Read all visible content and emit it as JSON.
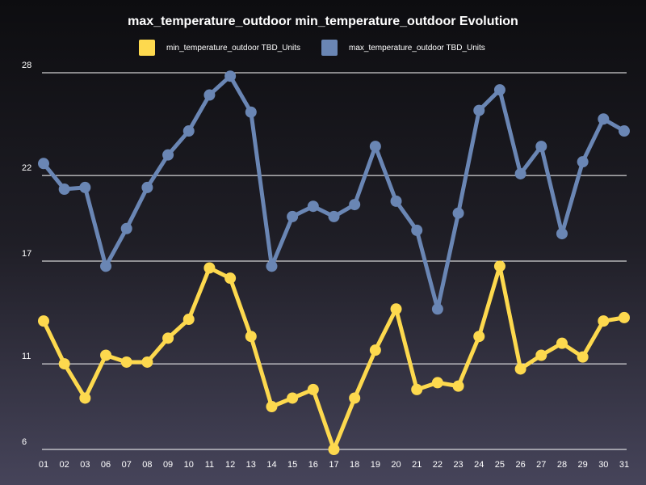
{
  "chart_data": {
    "type": "line",
    "title": "max_temperature_outdoor min_temperature_outdoor  Evolution",
    "xlabel": "",
    "ylabel": "",
    "categories": [
      "01",
      "02",
      "03",
      "06",
      "07",
      "08",
      "09",
      "10",
      "11",
      "12",
      "13",
      "14",
      "15",
      "16",
      "17",
      "18",
      "19",
      "20",
      "21",
      "22",
      "23",
      "24",
      "25",
      "26",
      "27",
      "28",
      "29",
      "30",
      "31"
    ],
    "y_ticks": [
      6,
      11,
      17,
      22,
      28
    ],
    "ylim": [
      6,
      28
    ],
    "grid": true,
    "legend_position": "top",
    "series": [
      {
        "name": "min_temperature_outdoor TBD_Units",
        "color": "#fdd94e",
        "values": [
          13.5,
          11.0,
          9.0,
          11.5,
          11.1,
          11.1,
          12.5,
          13.6,
          16.6,
          16.0,
          12.6,
          8.5,
          9.0,
          9.5,
          6.0,
          9.0,
          11.8,
          14.2,
          9.5,
          9.9,
          9.7,
          12.6,
          16.7,
          10.7,
          11.5,
          12.2,
          11.4,
          13.5,
          13.7
        ]
      },
      {
        "name": "max_temperature_outdoor TBD_Units",
        "color": "#6a86b4",
        "values": [
          22.7,
          21.2,
          21.3,
          16.7,
          18.9,
          21.3,
          23.2,
          24.6,
          26.7,
          27.8,
          25.7,
          16.7,
          19.6,
          20.2,
          19.6,
          20.3,
          23.7,
          20.5,
          18.8,
          14.2,
          19.8,
          25.8,
          27.0,
          22.1,
          23.7,
          18.6,
          22.8,
          25.3,
          24.6
        ]
      }
    ]
  }
}
